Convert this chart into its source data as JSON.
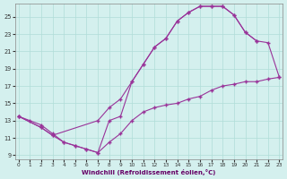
{
  "bg_color": "#d4f0ee",
  "grid_color": "#b0ddd8",
  "line_color": "#993399",
  "xlabel": "Windchill (Refroidissement éolien,°C)",
  "xlim": [
    -0.3,
    23.3
  ],
  "ylim": [
    8.5,
    26.5
  ],
  "xticks": [
    0,
    1,
    2,
    3,
    4,
    5,
    6,
    7,
    8,
    9,
    10,
    11,
    12,
    13,
    14,
    15,
    16,
    17,
    18,
    19,
    20,
    21,
    22,
    23
  ],
  "yticks": [
    9,
    11,
    13,
    15,
    17,
    19,
    21,
    23,
    25
  ],
  "curve_top_x": [
    0,
    1,
    2,
    3,
    4,
    5,
    6,
    7,
    8,
    9,
    10,
    11,
    12,
    13,
    14,
    15,
    16,
    17,
    18,
    19,
    20,
    21
  ],
  "curve_top_y": [
    13.5,
    13.0,
    12.5,
    11.5,
    10.5,
    10.1,
    9.7,
    9.3,
    13.0,
    13.5,
    17.5,
    19.5,
    21.5,
    22.5,
    24.5,
    25.5,
    26.2,
    26.2,
    26.2,
    25.2,
    23.2,
    22.2
  ],
  "curve_mid_x": [
    0,
    2,
    3,
    7,
    8,
    9,
    10,
    11,
    12,
    13,
    14,
    15,
    16,
    17,
    18,
    19,
    20,
    21,
    22,
    23
  ],
  "curve_mid_y": [
    13.5,
    12.2,
    11.3,
    13.0,
    14.5,
    15.5,
    17.5,
    19.5,
    21.5,
    22.5,
    24.5,
    25.5,
    26.2,
    26.2,
    26.2,
    25.2,
    23.2,
    22.2,
    22.0,
    18.0
  ],
  "curve_bot_x": [
    0,
    2,
    3,
    4,
    5,
    6,
    7,
    8,
    9,
    10,
    11,
    12,
    13,
    14,
    15,
    16,
    17,
    18,
    19,
    20,
    21,
    22,
    23
  ],
  "curve_bot_y": [
    13.5,
    12.2,
    11.3,
    10.5,
    10.1,
    9.7,
    9.3,
    10.5,
    11.5,
    13.0,
    14.0,
    14.5,
    14.8,
    15.0,
    15.5,
    15.8,
    16.5,
    17.0,
    17.2,
    17.5,
    17.5,
    17.8,
    18.0
  ]
}
